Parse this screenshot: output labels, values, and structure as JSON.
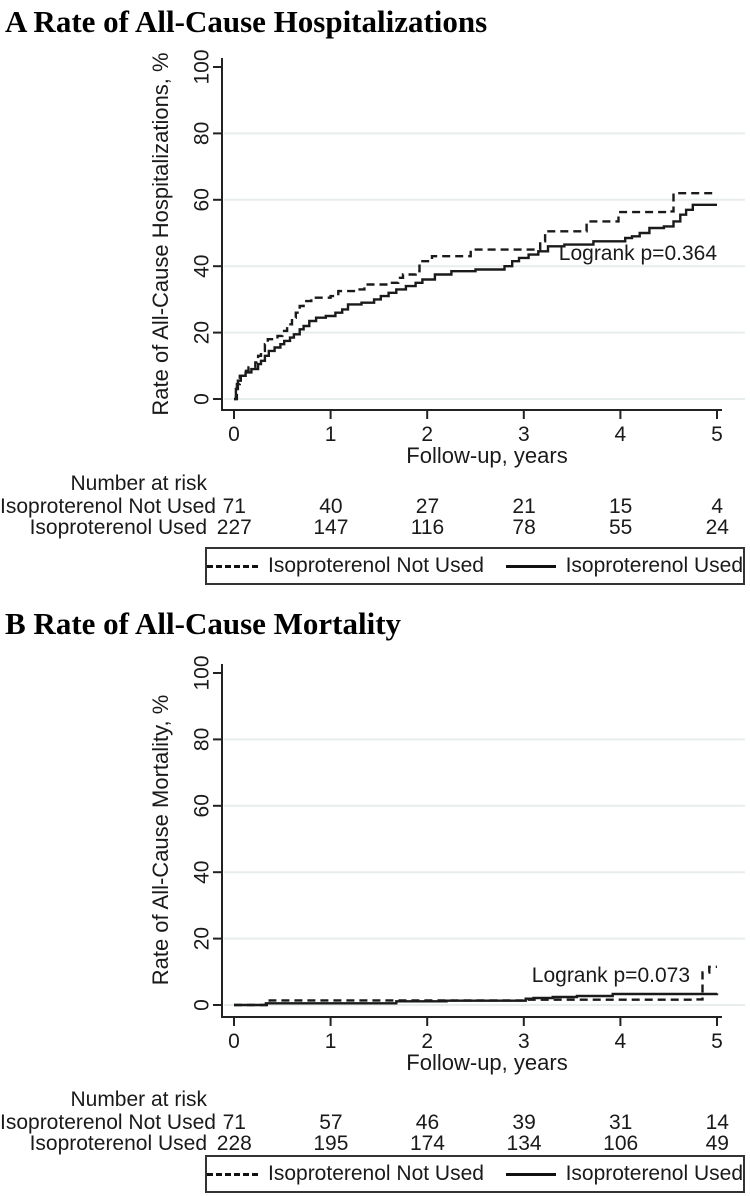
{
  "style": {
    "line_color": "#1a1a1a",
    "grid_color": "#e8eeee",
    "axis_color": "#222222"
  },
  "chart_data": [
    {
      "type": "line",
      "subtype": "kaplan-meier-step",
      "title": "A Rate of All-Cause Hospitalizations",
      "xlabel": "Follow-up, years",
      "ylabel": "Rate of All-Cause Hospitalizations, %",
      "xlim": [
        0,
        5
      ],
      "ylim": [
        0,
        100
      ],
      "xticks": [
        0,
        1,
        2,
        3,
        4,
        5
      ],
      "yticks": [
        0,
        20,
        40,
        60,
        80,
        100
      ],
      "gridlines_y": [
        0,
        20,
        40,
        60,
        80
      ],
      "legend_position": "bottom",
      "annotation": {
        "text": "Logrank p=0.364",
        "x": 5.0,
        "y": 44,
        "anchor": "end"
      },
      "series": [
        {
          "name": "Isoproterenol Not Used",
          "dash": true,
          "points": [
            [
              0,
              0
            ],
            [
              0.03,
              4.5
            ],
            [
              0.06,
              7
            ],
            [
              0.1,
              8.5
            ],
            [
              0.15,
              9.5
            ],
            [
              0.22,
              11
            ],
            [
              0.25,
              13
            ],
            [
              0.28,
              14.5
            ],
            [
              0.32,
              16.5
            ],
            [
              0.35,
              18
            ],
            [
              0.45,
              19
            ],
            [
              0.5,
              20.5
            ],
            [
              0.55,
              22.5
            ],
            [
              0.6,
              24.5
            ],
            [
              0.64,
              26
            ],
            [
              0.68,
              28
            ],
            [
              0.72,
              29.5
            ],
            [
              0.8,
              30.5
            ],
            [
              1.0,
              31
            ],
            [
              1.08,
              32.5
            ],
            [
              1.3,
              33
            ],
            [
              1.35,
              34.5
            ],
            [
              1.6,
              35
            ],
            [
              1.7,
              36.5
            ],
            [
              1.75,
              37.5
            ],
            [
              1.88,
              38.5
            ],
            [
              1.92,
              41.5
            ],
            [
              2.05,
              43
            ],
            [
              2.45,
              45
            ],
            [
              3.17,
              47.5
            ],
            [
              3.22,
              50.5
            ],
            [
              3.65,
              53.5
            ],
            [
              3.98,
              56.3
            ],
            [
              4.5,
              56.5
            ],
            [
              4.55,
              62
            ],
            [
              5,
              62
            ]
          ]
        },
        {
          "name": "Isoproterenol Used",
          "dash": false,
          "points": [
            [
              0,
              0
            ],
            [
              0.02,
              3
            ],
            [
              0.04,
              5.5
            ],
            [
              0.07,
              7
            ],
            [
              0.12,
              8
            ],
            [
              0.18,
              9
            ],
            [
              0.25,
              10.5
            ],
            [
              0.28,
              11.5
            ],
            [
              0.32,
              13
            ],
            [
              0.36,
              14.5
            ],
            [
              0.42,
              15.5
            ],
            [
              0.48,
              16.5
            ],
            [
              0.52,
              17.5
            ],
            [
              0.58,
              18.5
            ],
            [
              0.62,
              19.5
            ],
            [
              0.68,
              21
            ],
            [
              0.72,
              22
            ],
            [
              0.78,
              23.5
            ],
            [
              0.85,
              24.5
            ],
            [
              0.95,
              25
            ],
            [
              1.05,
              26
            ],
            [
              1.12,
              27
            ],
            [
              1.18,
              28.5
            ],
            [
              1.32,
              29
            ],
            [
              1.45,
              30
            ],
            [
              1.52,
              31
            ],
            [
              1.6,
              32
            ],
            [
              1.68,
              33
            ],
            [
              1.78,
              34
            ],
            [
              1.88,
              35
            ],
            [
              1.95,
              36
            ],
            [
              2.08,
              37.5
            ],
            [
              2.25,
              38.5
            ],
            [
              2.5,
              39
            ],
            [
              2.8,
              40
            ],
            [
              2.88,
              41.5
            ],
            [
              2.95,
              42.5
            ],
            [
              3.05,
              43.5
            ],
            [
              3.15,
              44.5
            ],
            [
              3.25,
              46
            ],
            [
              3.42,
              46.5
            ],
            [
              3.72,
              47.5
            ],
            [
              4.05,
              48.5
            ],
            [
              4.12,
              49
            ],
            [
              4.2,
              50
            ],
            [
              4.3,
              51.5
            ],
            [
              4.45,
              52
            ],
            [
              4.55,
              53.5
            ],
            [
              4.62,
              55.5
            ],
            [
              4.68,
              57
            ],
            [
              4.75,
              58.5
            ],
            [
              5,
              58.5
            ]
          ]
        }
      ],
      "number_at_risk": {
        "header": "Number at risk",
        "rows": [
          {
            "label": "Isoproterenol Not Used",
            "values": [
              71,
              40,
              27,
              21,
              15,
              4
            ]
          },
          {
            "label": "Isoproterenol Used",
            "values": [
              227,
              147,
              116,
              78,
              55,
              24
            ]
          }
        ]
      }
    },
    {
      "type": "line",
      "subtype": "kaplan-meier-step",
      "title": "B Rate of All-Cause Mortality",
      "xlabel": "Follow-up, years",
      "ylabel": "Rate of All-Cause Mortality, %",
      "xlim": [
        0,
        5
      ],
      "ylim": [
        0,
        100
      ],
      "xticks": [
        0,
        1,
        2,
        3,
        4,
        5
      ],
      "yticks": [
        0,
        20,
        40,
        60,
        80,
        100
      ],
      "gridlines_y": [
        0,
        20,
        40,
        60,
        80
      ],
      "legend_position": "bottom",
      "annotation": {
        "text": "Logrank p=0.073",
        "x": 4.72,
        "y": 9,
        "anchor": "end"
      },
      "series": [
        {
          "name": "Isoproterenol Not Used",
          "dash": true,
          "points": [
            [
              0,
              0
            ],
            [
              0.37,
              1.4
            ],
            [
              3.0,
              1.6
            ],
            [
              4.78,
              1.7
            ],
            [
              4.85,
              9.8
            ],
            [
              4.92,
              11.5
            ],
            [
              5,
              11.5
            ]
          ]
        },
        {
          "name": "Isoproterenol Used",
          "dash": false,
          "points": [
            [
              0,
              0
            ],
            [
              0.33,
              0.5
            ],
            [
              1.68,
              1.1
            ],
            [
              2.2,
              1.3
            ],
            [
              3.02,
              1.9
            ],
            [
              3.1,
              2.1
            ],
            [
              3.3,
              2.4
            ],
            [
              3.55,
              2.7
            ],
            [
              3.92,
              3.3
            ],
            [
              5,
              3.5
            ]
          ]
        }
      ],
      "number_at_risk": {
        "header": "Number at risk",
        "rows": [
          {
            "label": "Isoproterenol Not Used",
            "values": [
              71,
              57,
              46,
              39,
              31,
              14
            ]
          },
          {
            "label": "Isoproterenol Used",
            "values": [
              228,
              195,
              174,
              134,
              106,
              49
            ]
          }
        ]
      }
    }
  ]
}
